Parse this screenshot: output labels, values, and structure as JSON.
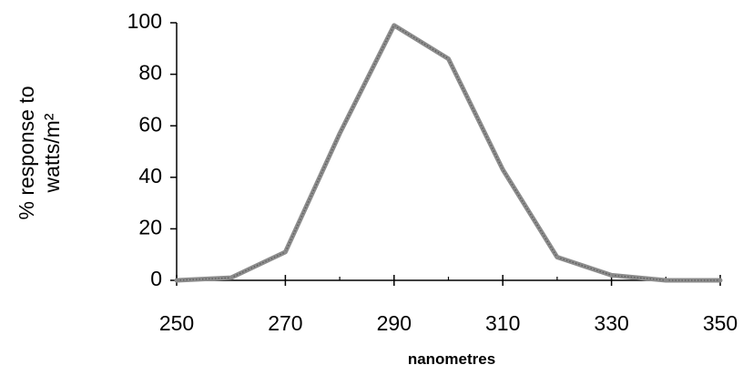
{
  "chart_data": {
    "type": "line",
    "title": "",
    "xlabel": "nanometres",
    "ylabel_lines": [
      "% response to",
      "watts/m²"
    ],
    "xlim": [
      250,
      350
    ],
    "ylim": [
      0,
      100
    ],
    "x_ticks": [
      250,
      270,
      290,
      310,
      330,
      350
    ],
    "y_ticks": [
      0,
      20,
      40,
      60,
      80,
      100
    ],
    "x_minor_ticks": [
      260,
      280,
      300,
      320,
      340
    ],
    "grid": false,
    "legend": "none",
    "series": [
      {
        "x": [
          250,
          260,
          270,
          280,
          290,
          300,
          310,
          320,
          330,
          340,
          350
        ],
        "values": [
          0,
          1,
          11,
          57,
          99,
          86,
          43,
          9,
          2,
          0,
          0
        ],
        "color": "#8c8c8c"
      }
    ]
  }
}
